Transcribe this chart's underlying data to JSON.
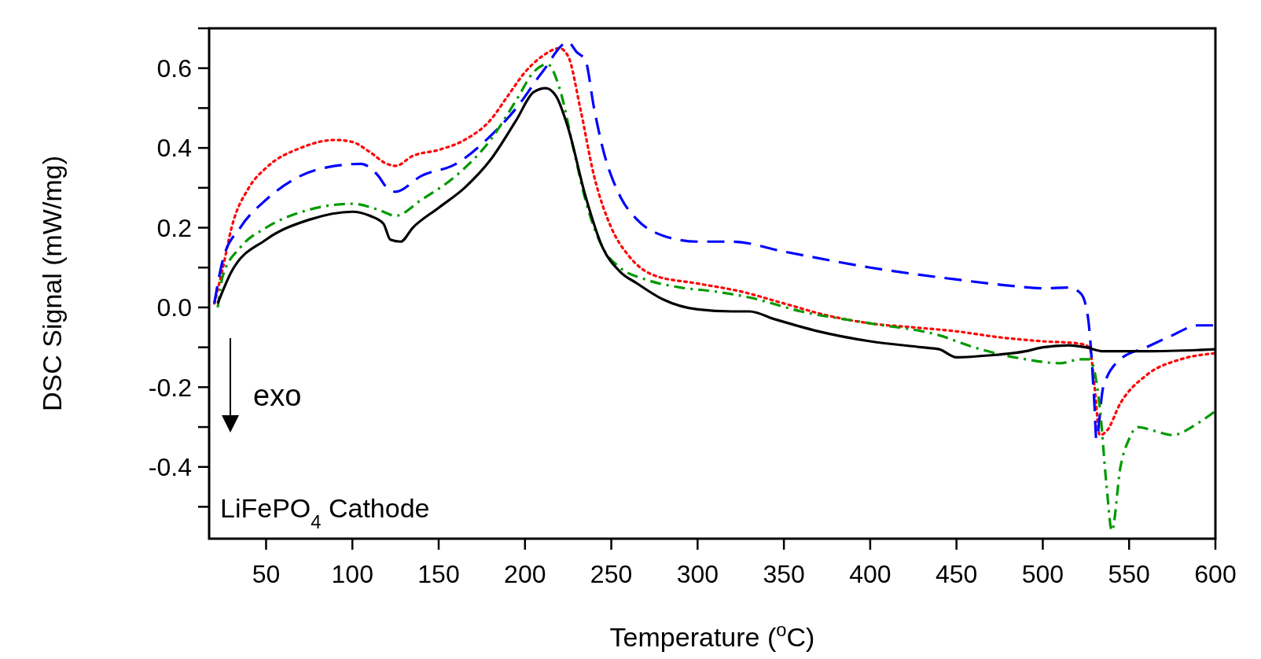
{
  "chart_data": {
    "type": "line",
    "xlabel": "Temperature ($^{o}$C)",
    "ylabel": "DSC Signal (mW/mg)",
    "annotations": [
      "exo",
      "LiFePO$_{4}$ Cathode"
    ],
    "xlim": [
      17,
      600
    ],
    "xticks": [
      50,
      100,
      150,
      200,
      250,
      300,
      350,
      400,
      450,
      500,
      550,
      600
    ],
    "ylim": [
      -0.58,
      0.7
    ],
    "yticks": [
      {
        "value": -0.5,
        "label": null
      },
      {
        "value": -0.4,
        "label": "-0.4"
      },
      {
        "value": -0.3,
        "label": null
      },
      {
        "value": -0.2,
        "label": "-0.2"
      },
      {
        "value": -0.1,
        "label": null
      },
      {
        "value": 0,
        "label": "0.0"
      },
      {
        "value": 0.1,
        "label": null
      },
      {
        "value": 0.2,
        "label": "0.2"
      },
      {
        "value": 0.3,
        "label": null
      },
      {
        "value": 0.4,
        "label": "0.4"
      },
      {
        "value": 0.5,
        "label": null
      },
      {
        "value": 0.6,
        "label": "0.6"
      },
      {
        "value": 0.7,
        "label": null
      }
    ],
    "grid": false,
    "series": [
      {
        "color": "#ff0000",
        "line_style": "dotted",
        "x": [
          20,
          25,
          30,
          40,
          50,
          70,
          90,
          100,
          110,
          120,
          125,
          135,
          150,
          165,
          180,
          190,
          200,
          210,
          220,
          225,
          232,
          240,
          250,
          260,
          275,
          300,
          325,
          350,
          375,
          400,
          425,
          450,
          475,
          500,
          520,
          527,
          530,
          533,
          537,
          545,
          560,
          580,
          600
        ],
        "values": [
          0.01,
          0.1,
          0.2,
          0.3,
          0.35,
          0.4,
          0.42,
          0.415,
          0.39,
          0.36,
          0.355,
          0.38,
          0.395,
          0.42,
          0.47,
          0.53,
          0.59,
          0.63,
          0.65,
          0.63,
          0.5,
          0.33,
          0.2,
          0.13,
          0.08,
          0.06,
          0.04,
          0.01,
          -0.02,
          -0.04,
          -0.05,
          -0.06,
          -0.075,
          -0.085,
          -0.09,
          -0.1,
          -0.2,
          -0.32,
          -0.31,
          -0.24,
          -0.17,
          -0.13,
          -0.115
        ]
      },
      {
        "color": "#0000ff",
        "line_style": "dashed",
        "x": [
          20,
          25,
          35,
          50,
          70,
          90,
          105,
          115,
          120,
          125,
          140,
          160,
          180,
          195,
          210,
          225,
          230,
          235,
          240,
          245,
          255,
          265,
          280,
          300,
          320,
          350,
          400,
          450,
          480,
          500,
          515,
          522,
          526,
          530,
          531,
          535,
          545,
          560,
          575,
          590,
          600
        ],
        "values": [
          0.01,
          0.12,
          0.2,
          0.27,
          0.33,
          0.355,
          0.36,
          0.33,
          0.3,
          0.29,
          0.33,
          0.36,
          0.43,
          0.5,
          0.59,
          0.665,
          0.64,
          0.62,
          0.5,
          0.4,
          0.28,
          0.22,
          0.18,
          0.165,
          0.165,
          0.14,
          0.1,
          0.07,
          0.055,
          0.048,
          0.05,
          0.035,
          -0.02,
          -0.25,
          -0.33,
          -0.2,
          -0.13,
          -0.1,
          -0.07,
          -0.045,
          -0.045
        ]
      },
      {
        "color": "#009900",
        "line_style": "dashdot",
        "x": [
          22,
          25,
          35,
          50,
          75,
          100,
          115,
          125,
          140,
          160,
          180,
          195,
          205,
          213,
          220,
          228,
          235,
          245,
          255,
          270,
          290,
          310,
          330,
          360,
          400,
          440,
          460,
          490,
          510,
          522,
          527,
          533,
          537,
          540,
          545,
          550,
          555,
          565,
          575,
          590,
          600
        ],
        "values": [
          0.0,
          0.08,
          0.15,
          0.2,
          0.245,
          0.26,
          0.245,
          0.23,
          0.27,
          0.33,
          0.42,
          0.52,
          0.59,
          0.61,
          0.55,
          0.4,
          0.27,
          0.15,
          0.1,
          0.07,
          0.05,
          0.04,
          0.025,
          -0.01,
          -0.04,
          -0.07,
          -0.1,
          -0.13,
          -0.14,
          -0.13,
          -0.13,
          -0.25,
          -0.45,
          -0.56,
          -0.4,
          -0.33,
          -0.3,
          -0.31,
          -0.32,
          -0.29,
          -0.26
        ]
      },
      {
        "color": "#000000",
        "line_style": "solid",
        "x": [
          22,
          30,
          50,
          75,
          100,
          110,
          118,
          122,
          128,
          135,
          150,
          165,
          180,
          195,
          205,
          212,
          218,
          225,
          235,
          245,
          255,
          265,
          280,
          300,
          320,
          330,
          345,
          370,
          400,
          430,
          440,
          450,
          470,
          490,
          500,
          515,
          525,
          535,
          560,
          600
        ],
        "values": [
          0.01,
          0.09,
          0.17,
          0.22,
          0.24,
          0.23,
          0.21,
          0.17,
          0.165,
          0.2,
          0.25,
          0.3,
          0.37,
          0.47,
          0.54,
          0.55,
          0.53,
          0.45,
          0.28,
          0.15,
          0.09,
          0.06,
          0.02,
          -0.005,
          -0.01,
          -0.01,
          -0.03,
          -0.06,
          -0.085,
          -0.1,
          -0.105,
          -0.125,
          -0.12,
          -0.11,
          -0.1,
          -0.095,
          -0.1,
          -0.11,
          -0.11,
          -0.105
        ]
      }
    ]
  }
}
